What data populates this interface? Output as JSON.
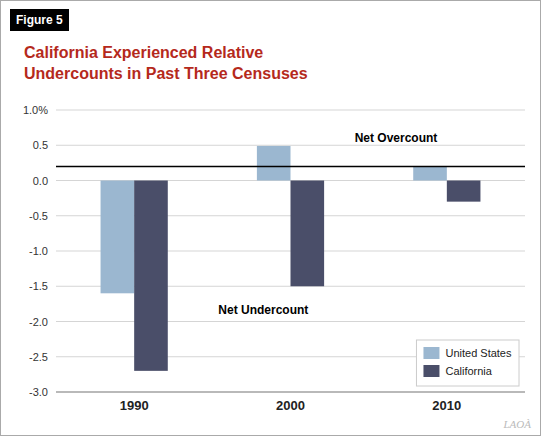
{
  "chart_data": {
    "type": "bar",
    "title": "California Experienced Relative\nUndercounts in Past Three Censuses",
    "annotations": [
      "Figure 5",
      "Net Overcount",
      "Net Undercount",
      "LAOÀ"
    ],
    "categories": [
      "1990",
      "2000",
      "2010"
    ],
    "series": [
      {
        "name": "United States",
        "color": "#9BB7D0",
        "values": [
          -1.6,
          0.49,
          0.2
        ]
      },
      {
        "name": "California",
        "color": "#4A4E69",
        "values": [
          -2.7,
          -1.5,
          -0.3
        ]
      }
    ],
    "reference_line": 0.2,
    "ylim": [
      -3.0,
      1.0
    ],
    "yticks": [
      {
        "value": 1.0,
        "label": "1.0%"
      },
      0.5,
      {
        "value": 0.0,
        "label": "0.0"
      },
      -0.5,
      {
        "value": -1.0,
        "label": "-1.0"
      },
      -1.5,
      {
        "value": -2.0,
        "label": "-2.0"
      },
      -2.5,
      {
        "value": -3.0,
        "label": "-3.0"
      }
    ],
    "grid": true,
    "legend": "lower right"
  }
}
